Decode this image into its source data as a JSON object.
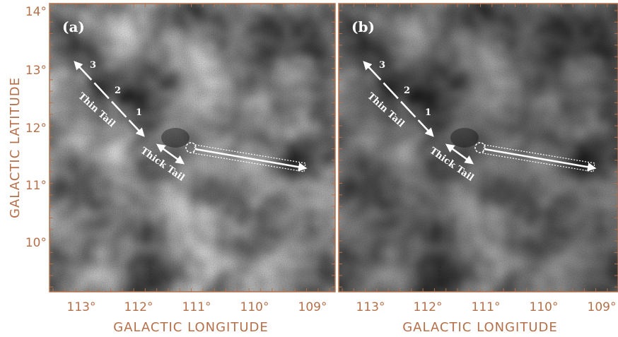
{
  "figure": {
    "y_axis_label": "GALACTIC LATITUDE",
    "y_ticks": [
      "14°",
      "13°",
      "12°",
      "11°",
      "10°"
    ],
    "panels": [
      {
        "label": "(a)",
        "x_axis_label": "GALACTIC LONGITUDE",
        "x_ticks": [
          "113°",
          "112°",
          "111°",
          "110°",
          "109°"
        ],
        "annotations": {
          "markers": [
            "1",
            "2",
            "3"
          ],
          "thin_tail": "Thin Tail",
          "thick_tail": "Thick Tail"
        }
      },
      {
        "label": "(b)",
        "x_axis_label": "GALACTIC LONGITUDE",
        "x_ticks": [
          "113°",
          "112°",
          "111°",
          "110°",
          "109°"
        ],
        "annotations": {
          "markers": [
            "1",
            "2",
            "3"
          ],
          "thin_tail": "Thin Tail",
          "thick_tail": "Thick Tail"
        }
      }
    ]
  }
}
